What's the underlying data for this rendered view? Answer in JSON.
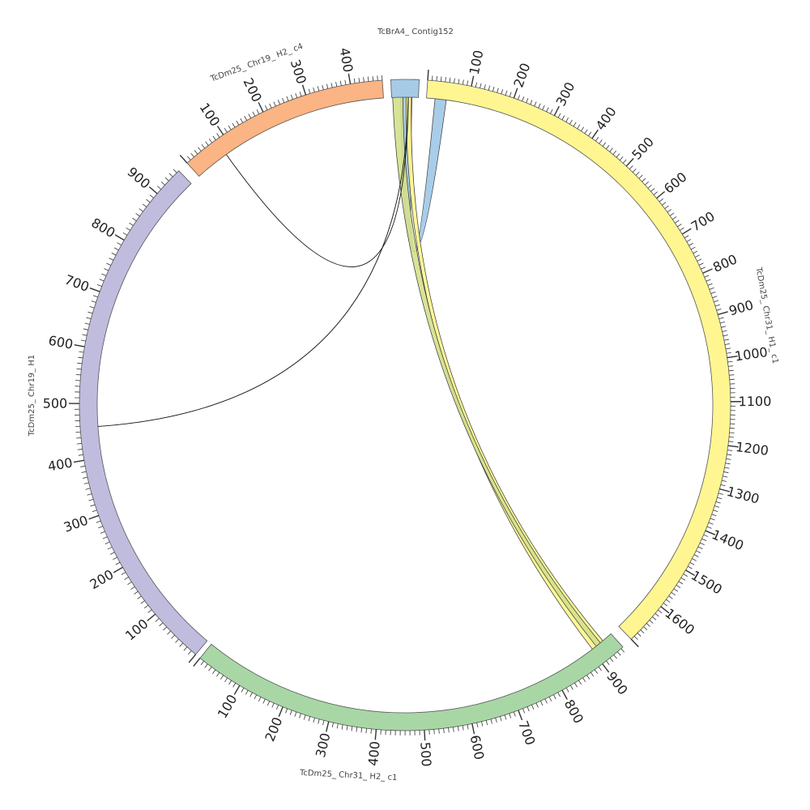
{
  "segments": [
    {
      "id": "contig",
      "label": "TcBrA4_ Contig152",
      "color": "#a0c8e6",
      "length": 60,
      "ticks": []
    },
    {
      "id": "h1c1",
      "label": "TcDm25_ Chr31_ H1_ c1",
      "color": "#fff68c",
      "length": 1700,
      "ticks": [
        "100",
        "200",
        "300",
        "400",
        "500",
        "600",
        "700",
        "800",
        "900",
        "1000",
        "1100",
        "1200",
        "1300",
        "1400",
        "1500",
        "1600"
      ]
    },
    {
      "id": "h2c1",
      "label": "TcDm25_ Chr31_ H2_ c1",
      "color": "#a3d5a0",
      "length": 955,
      "ticks": [
        "100",
        "200",
        "300",
        "400",
        "500",
        "600",
        "700",
        "800",
        "900"
      ]
    },
    {
      "id": "chr19h1",
      "label": "TcDm25_ Chr19_ H1",
      "color": "#bcb8dc",
      "length": 955,
      "ticks": [
        "100",
        "200",
        "300",
        "400",
        "500",
        "600",
        "700",
        "800",
        "900"
      ]
    },
    {
      "id": "chr19h2c4",
      "label": "TcDm25_ Chr19_ H2_ c4",
      "color": "#fbb07c",
      "length": 470,
      "ticks": [
        "100",
        "200",
        "300",
        "400"
      ]
    }
  ],
  "ribbons": [
    {
      "from": "contig",
      "to": "h1c1",
      "color": "#a0c8e6"
    },
    {
      "from": "contig",
      "to": "h2c1",
      "color": "#fff68c"
    },
    {
      "from": "contig",
      "to": "h2c1",
      "color": "#d4e08c"
    }
  ],
  "links": [
    {
      "from": "contig",
      "to": "chr19h2c4"
    },
    {
      "from": "contig",
      "to": "chr19h1"
    }
  ]
}
